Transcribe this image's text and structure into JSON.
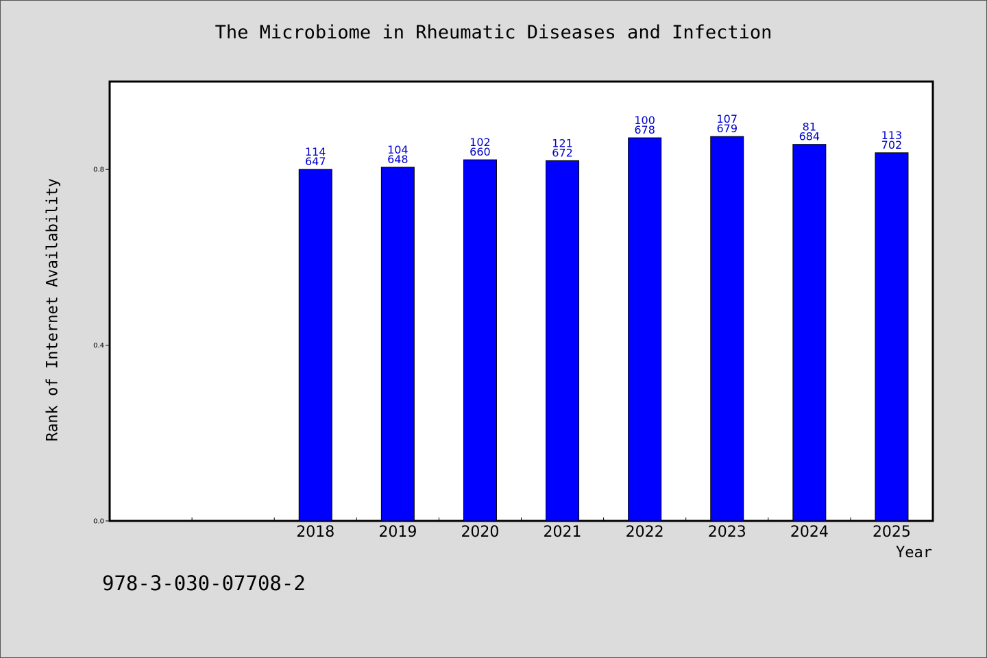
{
  "chart_data": {
    "type": "bar",
    "title": "The Microbiome in Rheumatic Diseases and Infection",
    "xlabel": "Year",
    "ylabel": "Rank of Internet Availability",
    "footer_text": "978-3-030-07708-2",
    "categories": [
      "2018",
      "2019",
      "2020",
      "2021",
      "2022",
      "2023",
      "2024",
      "2025"
    ],
    "series": [
      {
        "values": [
          0.8,
          0.805,
          0.822,
          0.82,
          0.872,
          0.875,
          0.857,
          0.838
        ],
        "upper_labels": [
          "114",
          "104",
          "102",
          "121",
          "100",
          "107",
          "81",
          "113"
        ],
        "lower_labels": [
          "647",
          "648",
          "660",
          "672",
          "678",
          "679",
          "684",
          "702"
        ],
        "color": "#0000ff"
      }
    ],
    "ylim": [
      0,
      1.0
    ],
    "yticks": [
      0.0,
      0.4,
      0.8
    ],
    "ytick_labels": [
      "0.0",
      "0.4",
      "0.8"
    ],
    "category_slots": 10,
    "empty_leading_slots": 2,
    "grid": false,
    "legend": "none",
    "label_color": "#0000cc",
    "background_color": "#dcdcdc",
    "plot_background": "#ffffff"
  }
}
